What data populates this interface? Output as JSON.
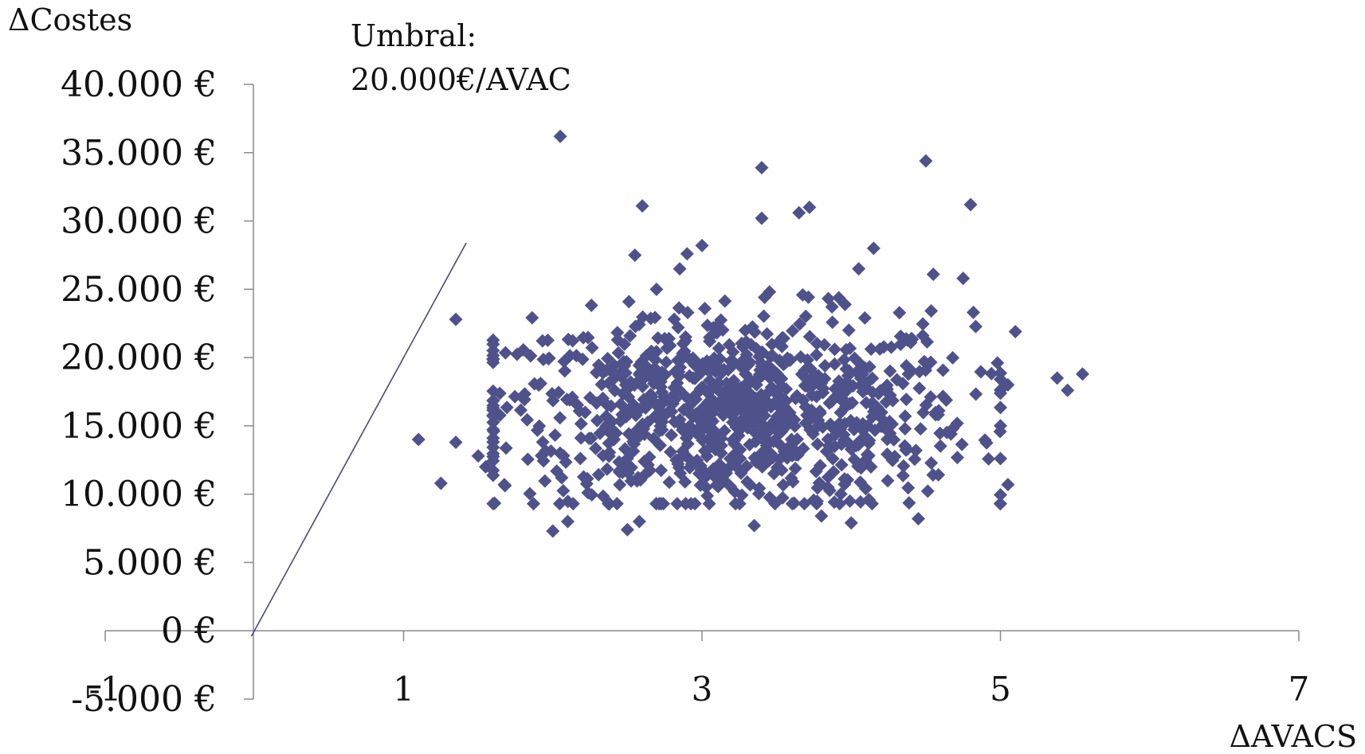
{
  "chart_data": {
    "type": "scatter",
    "title": "",
    "xlabel": "ΔAVACS",
    "ylabel": "ΔCostes",
    "xlim": [
      -1,
      7
    ],
    "ylim": [
      -5000,
      40000
    ],
    "x_ticks": [
      "-1",
      "1",
      "3",
      "5",
      "7"
    ],
    "y_ticks": [
      "40.000 €",
      "35.000 €",
      "30.000 €",
      "25.000 €",
      "20.000 €",
      "15.000 €",
      "10.000 €",
      "5.000 €",
      "0 €",
      "-5.000 €"
    ],
    "grid": false,
    "legend": "none",
    "series_color": "#4f528a",
    "threshold": {
      "label_line1": "Umbral:",
      "label_line2": "20.000€/AVAC",
      "slope": 20000
    },
    "points_outliers": [
      [
        2.05,
        36200
      ],
      [
        3.4,
        33900
      ],
      [
        4.5,
        34400
      ],
      [
        2.6,
        31100
      ],
      [
        3.65,
        30600
      ],
      [
        3.72,
        31000
      ],
      [
        4.8,
        31200
      ],
      [
        3.4,
        30200
      ],
      [
        1.35,
        22800
      ],
      [
        1.1,
        14000
      ],
      [
        1.25,
        10800
      ],
      [
        1.35,
        13800
      ],
      [
        1.55,
        12000
      ],
      [
        1.5,
        12800
      ],
      [
        2.0,
        7300
      ],
      [
        2.1,
        8000
      ],
      [
        2.5,
        7400
      ],
      [
        2.58,
        8000
      ],
      [
        3.35,
        7700
      ],
      [
        3.8,
        8400
      ],
      [
        4.0,
        7900
      ],
      [
        4.45,
        8200
      ],
      [
        5.05,
        10700
      ],
      [
        5.05,
        18000
      ],
      [
        5.1,
        21900
      ],
      [
        5.38,
        18500
      ],
      [
        5.45,
        17600
      ],
      [
        5.55,
        18800
      ],
      [
        4.55,
        26100
      ],
      [
        4.75,
        25800
      ],
      [
        4.05,
        26500
      ],
      [
        4.15,
        28000
      ],
      [
        3.0,
        28200
      ],
      [
        2.9,
        27600
      ],
      [
        2.55,
        27500
      ]
    ],
    "cloud": {
      "n": 950,
      "x_mean": 3.2,
      "x_sd": 0.8,
      "y_mean": 16000,
      "y_sd": 3600
    }
  }
}
